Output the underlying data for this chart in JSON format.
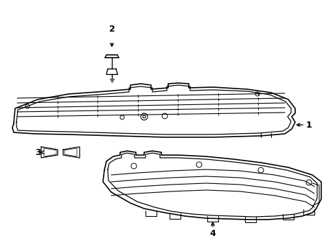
{
  "background_color": "#ffffff",
  "line_color": "#000000",
  "line_width": 1.0,
  "fig_width": 4.89,
  "fig_height": 3.6,
  "dpi": 100
}
